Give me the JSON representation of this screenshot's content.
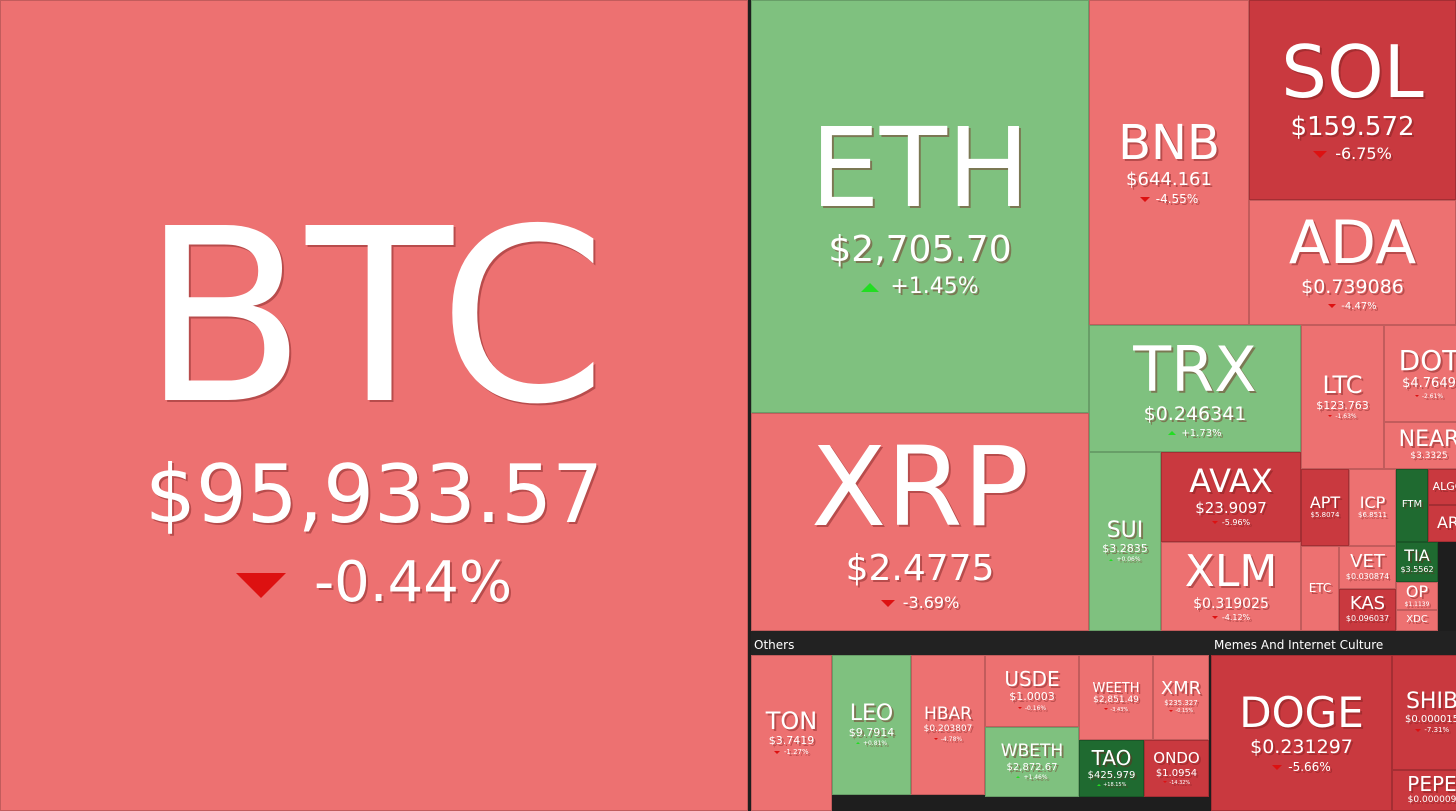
{
  "tiles": [
    {
      "symbol": "BTC",
      "price": "$95,933.57",
      "change": "-0.44%"
    },
    {
      "symbol": "ETH",
      "price": "$2,705.70",
      "change": "+1.45%"
    },
    {
      "symbol": "XRP",
      "price": "$2.4775",
      "change": "-3.69%"
    },
    {
      "symbol": "BNB",
      "price": "$644.161",
      "change": "-4.55%"
    },
    {
      "symbol": "SOL",
      "price": "$159.572",
      "change": "-6.75%"
    },
    {
      "symbol": "ADA",
      "price": "$0.739086",
      "change": "-4.47%"
    },
    {
      "symbol": "TRX",
      "price": "$0.246341",
      "change": "+1.73%"
    },
    {
      "symbol": "SUI",
      "price": "$3.2835",
      "change": "+0.06%"
    },
    {
      "symbol": "AVAX",
      "price": "$23.9097",
      "change": "-5.96%"
    },
    {
      "symbol": "XLM",
      "price": "$0.319025",
      "change": "-4.12%"
    },
    {
      "symbol": "LTC",
      "price": "$123.763",
      "change": "-1.63%"
    },
    {
      "symbol": "DOT",
      "price": "$4.7649",
      "change": "-2.61%"
    },
    {
      "symbol": "NEAR",
      "price": "$3.3325"
    },
    {
      "symbol": "APT",
      "price": "$5.8074"
    },
    {
      "symbol": "ICP",
      "price": "$6.8511"
    },
    {
      "symbol": "FTM"
    },
    {
      "symbol": "ALGO"
    },
    {
      "symbol": "AR"
    },
    {
      "symbol": "ETC"
    },
    {
      "symbol": "VET",
      "price": "$0.030874"
    },
    {
      "symbol": "KAS",
      "price": "$0.096037"
    },
    {
      "symbol": "TIA",
      "price": "$3.5562"
    },
    {
      "symbol": "OP",
      "price": "$1.1139"
    },
    {
      "symbol": "XDC"
    },
    {
      "symbol": "TON",
      "price": "$3.7419",
      "change": "-1.27%"
    },
    {
      "symbol": "LEO",
      "price": "$9.7914",
      "change": "+0.81%"
    },
    {
      "symbol": "HBAR",
      "price": "$0.203807",
      "change": "-4.78%"
    },
    {
      "symbol": "USDE",
      "price": "$1.0003",
      "change": "-0.16%"
    },
    {
      "symbol": "WEETH",
      "price": "$2,851.49",
      "change": "-3.43%"
    },
    {
      "symbol": "XMR",
      "price": "$235.327",
      "change": "-0.15%"
    },
    {
      "symbol": "WBETH",
      "price": "$2,872.67",
      "change": "+1.46%"
    },
    {
      "symbol": "TAO",
      "price": "$425.979",
      "change": "+18.15%"
    },
    {
      "symbol": "ONDO",
      "price": "$1.0954",
      "change": "-14.32%"
    },
    {
      "symbol": "DOGE",
      "price": "$0.231297",
      "change": "-5.66%"
    },
    {
      "symbol": "SHIB",
      "price": "$0.000015",
      "change": "-7.31%"
    },
    {
      "symbol": "PEPE",
      "price": "$0.000009"
    }
  ],
  "groups": [
    {
      "label": "Others"
    },
    {
      "label": "Memes And Internet Culture"
    }
  ]
}
